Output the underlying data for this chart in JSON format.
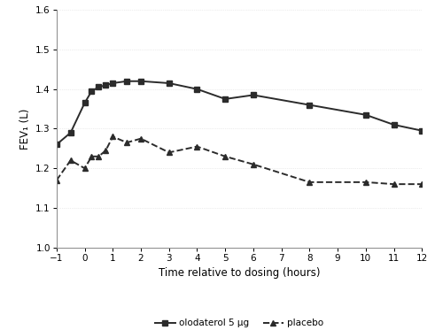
{
  "olodaterol_x": [
    -1,
    -0.5,
    0,
    0.25,
    0.5,
    0.75,
    1,
    1.5,
    2,
    3,
    4,
    5,
    6,
    8,
    10,
    11,
    12
  ],
  "olodaterol_y": [
    1.26,
    1.29,
    1.365,
    1.395,
    1.405,
    1.41,
    1.415,
    1.42,
    1.42,
    1.415,
    1.4,
    1.375,
    1.385,
    1.36,
    1.335,
    1.31,
    1.295
  ],
  "placebo_x": [
    -1,
    -0.5,
    0,
    0.25,
    0.5,
    0.75,
    1,
    1.5,
    2,
    3,
    4,
    5,
    6,
    8,
    10,
    11,
    12
  ],
  "placebo_y": [
    1.17,
    1.22,
    1.2,
    1.23,
    1.23,
    1.245,
    1.28,
    1.265,
    1.275,
    1.24,
    1.255,
    1.23,
    1.21,
    1.165,
    1.165,
    1.16,
    1.16
  ],
  "xlabel": "Time relative to dosing (hours)",
  "ylabel": "FEV₁ (L)",
  "ylim": [
    1.0,
    1.6
  ],
  "xlim": [
    -1,
    12
  ],
  "xticks": [
    -1,
    0,
    1,
    2,
    3,
    4,
    5,
    6,
    7,
    8,
    9,
    10,
    11,
    12
  ],
  "yticks": [
    1.0,
    1.1,
    1.2,
    1.3,
    1.4,
    1.5,
    1.6
  ],
  "legend_olodaterol": "olodaterol 5 μg",
  "legend_placebo": "placebo",
  "line_color": "#2b2b2b",
  "background_color": "#ffffff"
}
